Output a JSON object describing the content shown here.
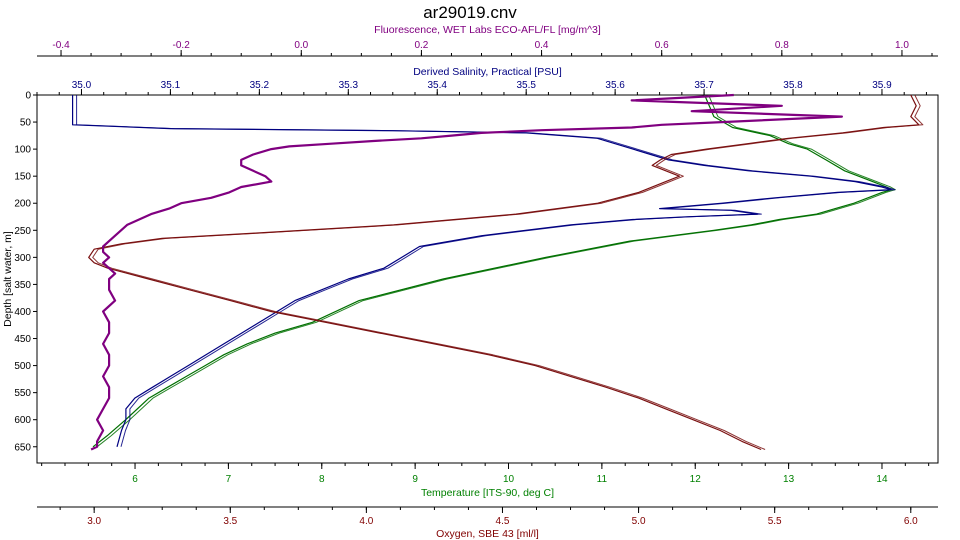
{
  "chart_data": {
    "type": "line",
    "title": "ar29019.cnv",
    "grid": false,
    "legend": "none",
    "y_axis": {
      "label": "Depth [salt water, m]",
      "range": [
        0,
        680
      ],
      "ticks": [
        "0",
        "50",
        "100",
        "150",
        "200",
        "250",
        "300",
        "350",
        "400",
        "450",
        "500",
        "550",
        "600",
        "650"
      ],
      "inverted": true
    },
    "axes": [
      {
        "key": "fluor",
        "position": "top-1",
        "label": "Fluorescence, WET Labs ECO-AFL/FL [mg/m^3]",
        "color": "#800080",
        "range": [
          -0.44,
          1.06
        ],
        "ticks": [
          "-0.4",
          "-0.2",
          "0.0",
          "0.2",
          "0.4",
          "0.6",
          "0.8",
          "1.0"
        ]
      },
      {
        "key": "sal",
        "position": "top-2",
        "label": "Derived Salinity, Practical [PSU]",
        "color": "#000080",
        "range": [
          34.95,
          35.963
        ],
        "ticks": [
          "35.0",
          "35.1",
          "35.2",
          "35.3",
          "35.4",
          "35.5",
          "35.6",
          "35.7",
          "35.8",
          "35.9"
        ]
      },
      {
        "key": "temp",
        "position": "bottom-1",
        "label": "Temperature [ITS-90, deg C]",
        "color": "#008000",
        "range": [
          4.95,
          14.6
        ],
        "ticks": [
          "6",
          "7",
          "8",
          "9",
          "10",
          "11",
          "12",
          "13",
          "14"
        ]
      },
      {
        "key": "oxy",
        "position": "bottom-2",
        "label": "Oxygen, SBE 43 [ml/l]",
        "color": "#800000",
        "range": [
          2.79,
          6.1
        ],
        "ticks": [
          "3.0",
          "3.5",
          "4.0",
          "4.5",
          "5.0",
          "5.5",
          "6.0"
        ]
      }
    ],
    "series": [
      {
        "axis": "temp",
        "color": "#007000",
        "depth": [
          0,
          40,
          60,
          75,
          90,
          100,
          120,
          140,
          160,
          170,
          175,
          180,
          200,
          210,
          220,
          230,
          240,
          250,
          270,
          300,
          340,
          380,
          420,
          440,
          460,
          480,
          500,
          520,
          540,
          560,
          600,
          630,
          650
        ],
        "values": [
          12.1,
          12.2,
          12.4,
          12.8,
          13.0,
          13.2,
          13.4,
          13.6,
          13.9,
          14.05,
          14.1,
          14.0,
          13.7,
          13.5,
          13.3,
          12.9,
          12.6,
          12.2,
          11.3,
          10.4,
          9.3,
          8.4,
          7.9,
          7.5,
          7.2,
          6.95,
          6.75,
          6.55,
          6.35,
          6.15,
          5.9,
          5.7,
          5.55
        ]
      },
      {
        "axis": "sal",
        "color": "#000080",
        "depth": [
          0,
          30,
          55,
          62,
          66,
          70,
          80,
          90,
          100,
          110,
          120,
          130,
          140,
          150,
          160,
          170,
          175,
          180,
          190,
          200,
          210,
          213,
          220,
          225,
          230,
          240,
          260,
          280,
          300,
          320,
          340,
          360,
          380,
          400,
          420,
          440,
          460,
          480,
          500,
          520,
          540,
          560,
          580,
          600,
          620,
          650
        ],
        "values": [
          34.99,
          34.99,
          34.99,
          35.1,
          35.35,
          35.5,
          35.58,
          35.6,
          35.62,
          35.64,
          35.66,
          35.7,
          35.75,
          35.82,
          35.87,
          35.9,
          35.91,
          35.85,
          35.78,
          35.72,
          35.65,
          35.73,
          35.76,
          35.68,
          35.62,
          35.55,
          35.45,
          35.38,
          35.36,
          35.34,
          35.3,
          35.27,
          35.24,
          35.22,
          35.2,
          35.18,
          35.16,
          35.14,
          35.12,
          35.1,
          35.08,
          35.06,
          35.05,
          35.05,
          35.045,
          35.04
        ]
      },
      {
        "axis": "oxy",
        "color": "#7a1010",
        "depth": [
          0,
          20,
          40,
          55,
          60,
          70,
          80,
          90,
          100,
          110,
          120,
          130,
          140,
          150,
          160,
          180,
          200,
          220,
          240,
          255,
          265,
          275,
          285,
          300,
          310,
          320,
          340,
          360,
          380,
          400,
          420,
          440,
          460,
          480,
          500,
          520,
          540,
          560,
          580,
          600,
          620,
          640,
          655
        ],
        "values": [
          6.0,
          6.02,
          6.0,
          6.03,
          5.9,
          5.75,
          5.55,
          5.4,
          5.25,
          5.12,
          5.08,
          5.05,
          5.1,
          5.15,
          5.1,
          5.0,
          4.85,
          4.55,
          4.1,
          3.6,
          3.25,
          3.1,
          3.0,
          2.98,
          3.0,
          3.05,
          3.2,
          3.35,
          3.5,
          3.65,
          3.85,
          4.05,
          4.25,
          4.45,
          4.62,
          4.75,
          4.88,
          5.0,
          5.1,
          5.2,
          5.3,
          5.38,
          5.45
        ]
      },
      {
        "axis": "fluor",
        "color": "#800080",
        "depth": [
          0,
          10,
          20,
          30,
          40,
          50,
          55,
          60,
          65,
          70,
          75,
          80,
          85,
          90,
          95,
          100,
          110,
          120,
          130,
          140,
          150,
          160,
          170,
          180,
          190,
          200,
          210,
          220,
          230,
          240,
          250,
          260,
          270,
          280,
          290,
          300,
          310,
          320,
          330,
          340,
          360,
          380,
          400,
          420,
          440,
          460,
          480,
          500,
          520,
          540,
          560,
          580,
          600,
          620,
          640,
          650,
          655
        ],
        "values": [
          0.72,
          0.55,
          0.8,
          0.65,
          0.9,
          0.7,
          0.6,
          0.55,
          0.4,
          0.3,
          0.25,
          0.2,
          0.12,
          0.05,
          -0.02,
          -0.05,
          -0.08,
          -0.1,
          -0.1,
          -0.08,
          -0.06,
          -0.05,
          -0.1,
          -0.12,
          -0.15,
          -0.2,
          -0.22,
          -0.25,
          -0.27,
          -0.29,
          -0.3,
          -0.31,
          -0.32,
          -0.33,
          -0.33,
          -0.32,
          -0.33,
          -0.32,
          -0.31,
          -0.32,
          -0.32,
          -0.31,
          -0.33,
          -0.32,
          -0.32,
          -0.33,
          -0.32,
          -0.32,
          -0.33,
          -0.32,
          -0.32,
          -0.33,
          -0.34,
          -0.33,
          -0.34,
          -0.34,
          -0.35
        ]
      }
    ]
  }
}
